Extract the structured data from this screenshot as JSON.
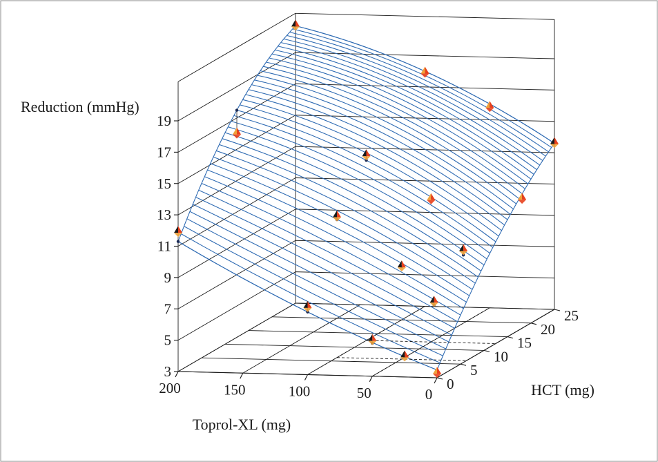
{
  "chart_data": {
    "type": "surface",
    "title": "",
    "zlabel": "Reduction (mmHg)",
    "xlabel": "Toprol-XL (mg)",
    "ylabel": "HCT (mg)",
    "x_ticks": [
      "200",
      "150",
      "100",
      "50",
      "0"
    ],
    "x_tick_values": [
      200,
      150,
      100,
      50,
      0
    ],
    "y_ticks": [
      "0",
      "5",
      "10",
      "15",
      "20",
      "25"
    ],
    "y_tick_values": [
      0,
      5,
      10,
      15,
      20,
      25
    ],
    "z_ticks": [
      "3",
      "5",
      "7",
      "9",
      "11",
      "13",
      "15",
      "17",
      "19"
    ],
    "z_tick_values": [
      3,
      5,
      7,
      9,
      11,
      13,
      15,
      17,
      19
    ],
    "xlim": [
      0,
      200
    ],
    "ylim": [
      0,
      25
    ],
    "zlim": [
      3,
      21.5
    ],
    "surface": {
      "description_free": true,
      "x_grid": [
        0,
        100,
        200
      ],
      "y_grid": [
        0,
        12.5,
        25
      ],
      "z": [
        [
          3.5,
          9.5,
          13.6
        ],
        [
          7.0,
          14.5,
          18.0
        ],
        [
          11.3,
          17.5,
          20.7
        ]
      ]
    },
    "points": [
      {
        "toprol": 200,
        "hct": 0,
        "observed": 11.9,
        "fitted": 11.3
      },
      {
        "toprol": 200,
        "hct": 12.5,
        "observed": 16.0,
        "fitted": 17.5
      },
      {
        "toprol": 200,
        "hct": 25,
        "observed": 20.7,
        "fitted": 20.7
      },
      {
        "toprol": 100,
        "hct": 0,
        "observed": 7.3,
        "fitted": 7.0
      },
      {
        "toprol": 100,
        "hct": 6.25,
        "observed": 12.0,
        "fitted": 11.8
      },
      {
        "toprol": 100,
        "hct": 12.5,
        "observed": 14.8,
        "fitted": 14.5
      },
      {
        "toprol": 100,
        "hct": 25,
        "observed": 17.9,
        "fitted": 18.0
      },
      {
        "toprol": 50,
        "hct": 0,
        "observed": 5.3,
        "fitted": 5.1
      },
      {
        "toprol": 50,
        "hct": 6.25,
        "observed": 8.9,
        "fitted": 8.9
      },
      {
        "toprol": 50,
        "hct": 12.5,
        "observed": 12.1,
        "fitted": 12.2
      },
      {
        "toprol": 50,
        "hct": 25,
        "observed": 15.8,
        "fitted": 15.9
      },
      {
        "toprol": 25,
        "hct": 0,
        "observed": 4.3,
        "fitted": 4.3
      },
      {
        "toprol": 25,
        "hct": 6.25,
        "observed": 6.7,
        "fitted": 6.5
      },
      {
        "toprol": 25,
        "hct": 12.5,
        "observed": 8.9,
        "fitted": 8.6
      },
      {
        "toprol": 25,
        "hct": 25,
        "observed": 10.0,
        "fitted": 10.2
      },
      {
        "toprol": 0,
        "hct": 0,
        "observed": 3.3,
        "fitted": 3.5
      },
      {
        "toprol": 0,
        "hct": 25,
        "observed": 13.6,
        "fitted": 13.6
      }
    ],
    "colors": {
      "surface_line": "#2f6bb3",
      "marker_red": "#e8401c",
      "marker_orange": "#f0a23a",
      "marker_dark": "#1a1a1a",
      "axes": "#1a1a1a",
      "grid": "#1a1a1a"
    },
    "grid": true,
    "legend": "none"
  }
}
